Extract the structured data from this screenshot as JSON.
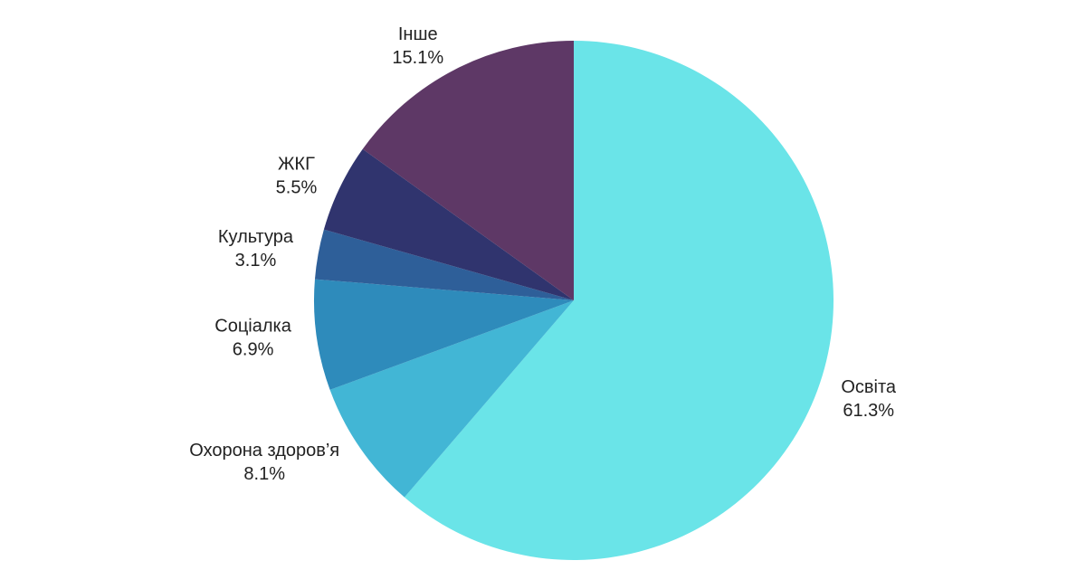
{
  "chart_data": {
    "type": "pie",
    "categories": [
      "Освіта",
      "Охорона здоров’я",
      "Соціалка",
      "Культура",
      "ЖКГ",
      "Інше"
    ],
    "values": [
      61.3,
      8.1,
      6.9,
      3.1,
      5.5,
      15.1
    ],
    "value_labels": [
      "61.3%",
      "8.1%",
      "6.9%",
      "3.1%",
      "5.5%",
      "15.1%"
    ],
    "colors": [
      "#6ae4e8",
      "#42b6d5",
      "#2e8bbb",
      "#2e5f99",
      "#30346e",
      "#5e3866"
    ]
  }
}
